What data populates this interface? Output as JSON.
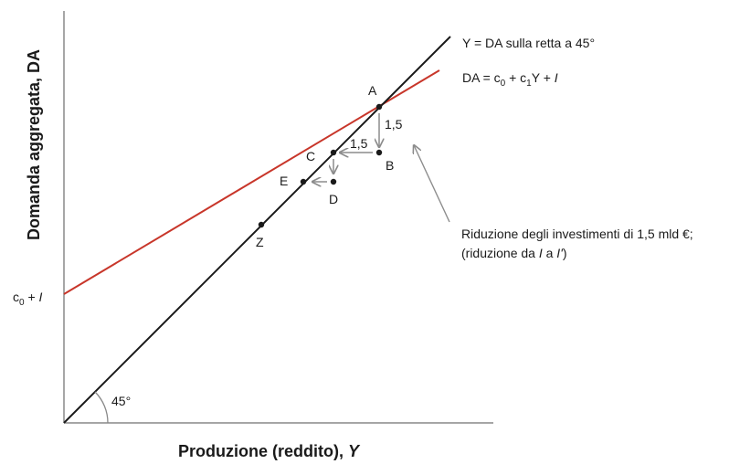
{
  "axes": {
    "x_title_main": "Produzione (reddito), ",
    "x_title_var": "Y",
    "y_title": "Domanda aggregata, DA"
  },
  "lines": {
    "forty_five": {
      "label": "Y = DA sulla retta a 45°",
      "color": "#1a1a1a"
    },
    "demand": {
      "label_prefix": "DA = c",
      "label_sub0": "0",
      "label_mid": " + c",
      "label_sub1": "1",
      "label_y": "Y + ",
      "label_i": "I",
      "color": "#c8362a"
    }
  },
  "intercept": {
    "c": "c",
    "sub": "0",
    "plus": " + ",
    "i": "I"
  },
  "angle_label": "45°",
  "points": {
    "A": "A",
    "B": "B",
    "C": "C",
    "D": "D",
    "E": "E",
    "Z": "Z"
  },
  "steps": {
    "down": "1,5",
    "left": "1,5"
  },
  "annotation": {
    "line1": "Riduzione degli investimenti di 1,5 mld €;",
    "line2_a": "(riduzione da ",
    "line2_i": "I",
    "line2_b": " a ",
    "line2_i2": "I'",
    "line2_c": ")"
  },
  "colors": {
    "axis": "#888888",
    "arrow": "#8c8c8c",
    "dot": "#1a1a1a"
  }
}
